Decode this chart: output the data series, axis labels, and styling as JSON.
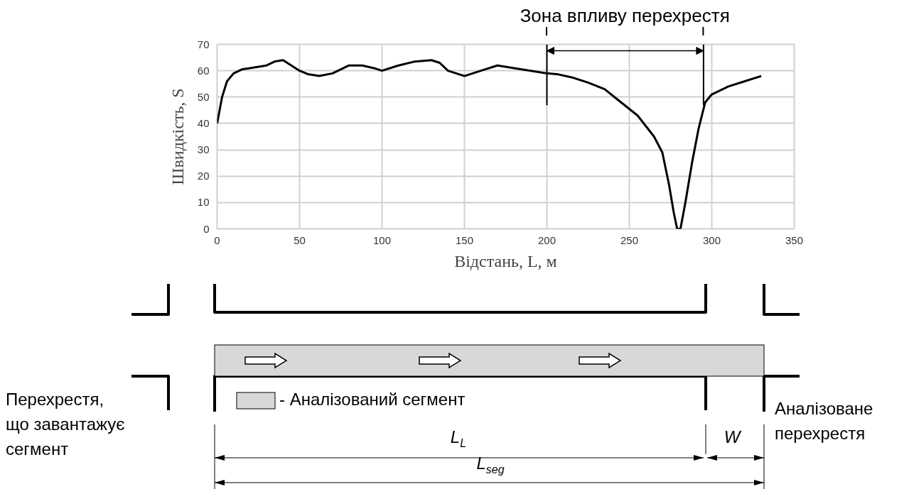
{
  "chart_data": {
    "type": "line",
    "xlabel": "Відстань, L, м",
    "ylabel": "Швидкість, S",
    "x": [
      0,
      3,
      6,
      10,
      15,
      20,
      30,
      35,
      40,
      45,
      50,
      55,
      62,
      70,
      80,
      88,
      95,
      100,
      110,
      120,
      130,
      135,
      140,
      150,
      160,
      170,
      180,
      200,
      207,
      215,
      225,
      235,
      245,
      255,
      265,
      270,
      274,
      277,
      279,
      281,
      284,
      288,
      292,
      296,
      300,
      310,
      320,
      330
    ],
    "series": [
      {
        "color": "#000000",
        "values": [
          40,
          50,
          56,
          59,
          60.5,
          61,
          62,
          63.5,
          64,
          62,
          60,
          58.7,
          58,
          59,
          62,
          62,
          61,
          60,
          62,
          63.5,
          64,
          63,
          60,
          58,
          60,
          62,
          61,
          59,
          58.6,
          57.5,
          55.5,
          53,
          48,
          43,
          35,
          29,
          17,
          6,
          0,
          0,
          10,
          25,
          38,
          48,
          51,
          54,
          56,
          58
        ]
      }
    ],
    "xlim": [
      0,
      350
    ],
    "xticks": [
      0,
      50,
      100,
      150,
      200,
      250,
      300,
      350
    ],
    "ylim": [
      0,
      70
    ],
    "yticks": [
      0,
      10,
      20,
      30,
      40,
      50,
      60,
      70
    ],
    "grid": true,
    "marker": "none",
    "line_style": "solid",
    "ref_lines": [
      {
        "axis": "x",
        "value": 200
      },
      {
        "axis": "x",
        "value": 295
      }
    ],
    "annotations": [
      "Зона впливу перехрестя",
      "Перехрестя,\nщо завантажує\nсегмент",
      "- Аналізований сегмент",
      "Аналізоване\nперехрестя",
      "L$_{L}$",
      "W",
      "L$_{seg}$"
    ]
  }
}
